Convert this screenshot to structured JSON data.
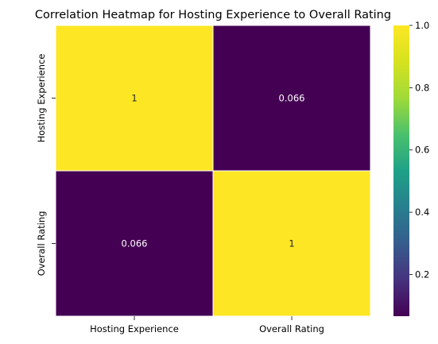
{
  "chart_data": {
    "type": "heatmap",
    "title": "Correlation Heatmap for Hosting Experience to Overall Rating",
    "row_labels": [
      "Hosting Experience",
      "Overall Rating"
    ],
    "col_labels": [
      "Hosting Experience",
      "Overall Rating"
    ],
    "values": [
      [
        1,
        0.066
      ],
      [
        0.066,
        1
      ]
    ],
    "annotations": [
      [
        "1",
        "0.066"
      ],
      [
        "0.066",
        "1"
      ]
    ],
    "colormap": "viridis",
    "vmin": 0.066,
    "vmax": 1.0,
    "colorbar_ticks": [
      0.2,
      0.4,
      0.6,
      0.8,
      1.0
    ],
    "colorbar_tick_labels": [
      "0.2",
      "0.4",
      "0.6",
      "0.8",
      "1.0"
    ],
    "cell_colors": {
      "high": "#fde725",
      "low": "#440154"
    },
    "annotation_colors": {
      "on_high": "#262626",
      "on_low": "#ffffff"
    }
  }
}
